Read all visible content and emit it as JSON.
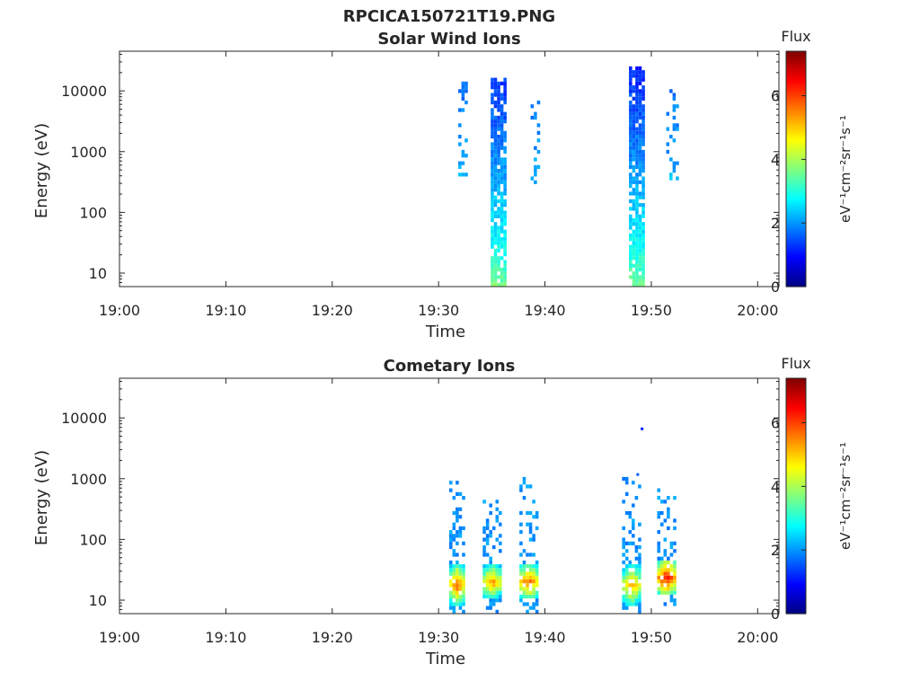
{
  "figure_title": "RPCICA150721T19.PNG",
  "colors": {
    "axis": "#262626",
    "background": "#ffffff",
    "colormap": "jet"
  },
  "chart_data": [
    {
      "type": "heatmap",
      "title": "Solar Wind Ions",
      "xlabel": "Time",
      "ylabel": "Energy (eV)",
      "x_ticks": [
        "19:00",
        "19:10",
        "19:20",
        "19:30",
        "19:40",
        "19:50",
        "20:00"
      ],
      "y_ticks": [
        "10",
        "100",
        "1000",
        "10000"
      ],
      "y_scale": "log",
      "x_range_minutes": [
        0,
        62
      ],
      "y_range_eV": [
        6,
        45000
      ],
      "grid": false,
      "colorbar": {
        "title": "Flux",
        "unit": "eV⁻¹cm⁻²sr⁻¹s⁻¹",
        "range": [
          0,
          7.4
        ],
        "ticks": [
          "0",
          "2",
          "4",
          "6"
        ],
        "colormap": "jet"
      },
      "bursts": [
        {
          "time_min": 32.3,
          "width_min": 0.9,
          "emin": 400,
          "emax": 15000,
          "density": 0.3,
          "flux_high": 1.7,
          "flux_low": 2.3
        },
        {
          "time_min": 35.6,
          "width_min": 1.4,
          "emin": 6,
          "emax": 17000,
          "density": 0.85,
          "flux_high": 1.3,
          "flux_low": 3.8
        },
        {
          "time_min": 39.1,
          "width_min": 0.9,
          "emin": 300,
          "emax": 7000,
          "density": 0.25,
          "flux_high": 1.8,
          "flux_low": 2.3
        },
        {
          "time_min": 48.6,
          "width_min": 1.4,
          "emin": 6,
          "emax": 24000,
          "density": 0.8,
          "flux_high": 1.2,
          "flux_low": 3.8
        },
        {
          "time_min": 52.0,
          "width_min": 1.2,
          "emin": 350,
          "emax": 12000,
          "density": 0.3,
          "flux_high": 1.8,
          "flux_low": 2.3
        }
      ]
    },
    {
      "type": "heatmap",
      "title": "Cometary Ions",
      "xlabel": "Time",
      "ylabel": "Energy (eV)",
      "x_ticks": [
        "19:00",
        "19:10",
        "19:20",
        "19:30",
        "19:40",
        "19:50",
        "20:00"
      ],
      "y_ticks": [
        "10",
        "100",
        "1000",
        "10000"
      ],
      "y_scale": "log",
      "x_range_minutes": [
        0,
        62
      ],
      "y_range_eV": [
        6,
        45000
      ],
      "grid": false,
      "colorbar": {
        "title": "Flux",
        "unit": "eV⁻¹cm⁻²sr⁻¹s⁻¹",
        "range": [
          0,
          7.4
        ],
        "ticks": [
          "0",
          "2",
          "4",
          "6"
        ],
        "colormap": "jet"
      },
      "bursts": [
        {
          "time_min": 31.8,
          "width_min": 1.6,
          "emin": 6,
          "emax": 1100,
          "density": 0.7,
          "core_min": 8,
          "core_max": 40,
          "peak_flux": 5.8
        },
        {
          "time_min": 35.0,
          "width_min": 1.7,
          "emin": 6,
          "emax": 600,
          "density": 0.7,
          "core_min": 10,
          "core_max": 40,
          "peak_flux": 5.6
        },
        {
          "time_min": 38.5,
          "width_min": 1.8,
          "emin": 6,
          "emax": 1200,
          "density": 0.7,
          "core_min": 10,
          "core_max": 40,
          "peak_flux": 5.9
        },
        {
          "time_min": 48.2,
          "width_min": 1.9,
          "emin": 6,
          "emax": 1100,
          "density": 0.7,
          "core_min": 8,
          "core_max": 40,
          "peak_flux": 5.5
        },
        {
          "time_min": 51.5,
          "width_min": 1.9,
          "emin": 8,
          "emax": 650,
          "density": 0.7,
          "core_min": 12,
          "core_max": 45,
          "peak_flux": 6.5
        }
      ],
      "isolated_points": [
        {
          "time_min": 49.0,
          "energy_eV": 6500,
          "flux": 1.2
        },
        {
          "time_min": 48.6,
          "energy_eV": 1150,
          "flux": 1.6
        }
      ]
    }
  ]
}
